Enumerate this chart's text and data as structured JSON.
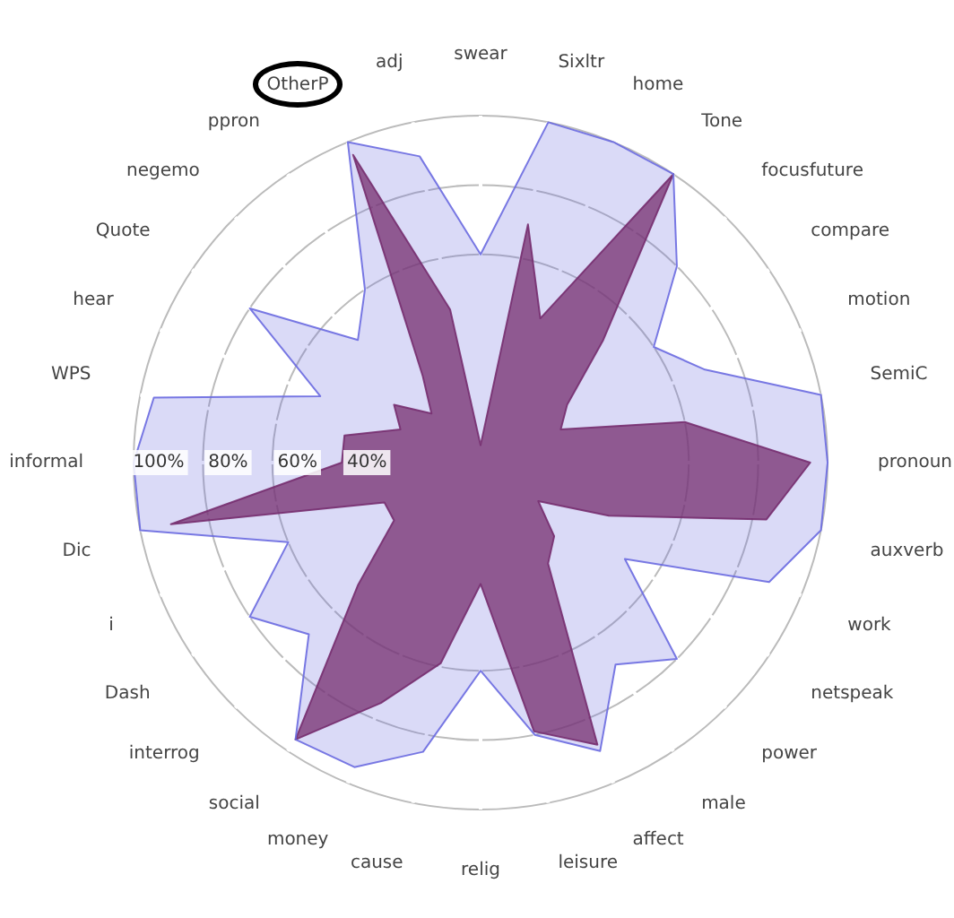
{
  "chart_data": {
    "type": "radar",
    "categories": [
      "swear",
      "Sixltr",
      "home",
      "Tone",
      "focusfuture",
      "compare",
      "motion",
      "SemiC",
      "pronoun",
      "auxverb",
      "work",
      "netspeak",
      "power",
      "male",
      "affect",
      "leisure",
      "relig",
      "cause",
      "money",
      "social",
      "interrog",
      "Dash",
      "i",
      "Dic",
      "informal",
      "WPS",
      "hear",
      "Quote",
      "negemo",
      "ppron",
      "OtherP",
      "adj"
    ],
    "series": [
      {
        "color": "#6a6ae0",
        "values": [
          60,
          100,
          100,
          100,
          80,
          60,
          70,
          100,
          100,
          100,
          90,
          50,
          80,
          70,
          90,
          80,
          60,
          85,
          95,
          96,
          70,
          80,
          60,
          100,
          100,
          96,
          50,
          80,
          50,
          60,
          100,
          90
        ]
      },
      {
        "color": "#7a1a4a",
        "values": [
          5,
          70,
          45,
          100,
          50,
          30,
          25,
          60,
          95,
          84,
          40,
          20,
          30,
          35,
          88,
          79,
          35,
          59,
          75,
          96,
          50,
          30,
          30,
          91,
          40,
          40,
          25,
          30,
          20,
          30,
          96,
          45
        ]
      }
    ],
    "ylim": [
      0,
      100
    ],
    "yticks": [
      {
        "value": 40,
        "label": "40%"
      },
      {
        "value": 60,
        "label": "60%"
      },
      {
        "value": 80,
        "label": "80%"
      },
      {
        "value": 100,
        "label": "100%"
      }
    ],
    "grid": true,
    "legend": false
  }
}
